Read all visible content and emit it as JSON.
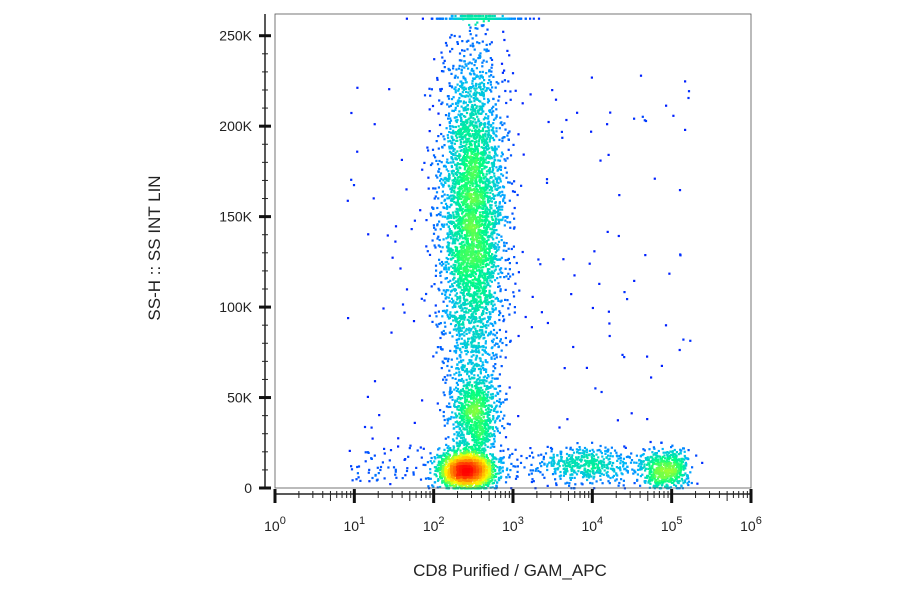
{
  "chart_data": {
    "type": "scatter",
    "subtype": "flow-cytometry-density-dot-plot",
    "title": "",
    "xlabel": "CD8 Purified / GAM_APC",
    "ylabel": "SS-H :: SS INT LIN",
    "x_scale": "log",
    "xlim": [
      1,
      1000000
    ],
    "ylim": [
      0,
      262000
    ],
    "x_ticks": [
      {
        "value": 1,
        "base": "10",
        "exp": "0"
      },
      {
        "value": 10,
        "base": "10",
        "exp": "1"
      },
      {
        "value": 100,
        "base": "10",
        "exp": "2"
      },
      {
        "value": 1000,
        "base": "10",
        "exp": "3"
      },
      {
        "value": 10000,
        "base": "10",
        "exp": "4"
      },
      {
        "value": 100000,
        "base": "10",
        "exp": "5"
      },
      {
        "value": 1000000,
        "base": "10",
        "exp": "6"
      }
    ],
    "y_ticks": [
      {
        "value": 0,
        "label": "0"
      },
      {
        "value": 50000,
        "label": "50K"
      },
      {
        "value": 100000,
        "label": "100K"
      },
      {
        "value": 150000,
        "label": "150K"
      },
      {
        "value": 200000,
        "label": "200K"
      },
      {
        "value": 250000,
        "label": "250K"
      }
    ],
    "grid": false,
    "legend": "none",
    "density_colormap": [
      "#0000ff",
      "#00b4ff",
      "#00ff80",
      "#ffff00",
      "#ff8000",
      "#ff0000"
    ],
    "populations": [
      {
        "x_center": 300,
        "y_center": 150000,
        "x_spread_decades": 0.2,
        "y_spread": 45000,
        "relative_count": 0.45,
        "peak_density": "red"
      },
      {
        "x_center": 250,
        "y_center": 10000,
        "x_spread_decades": 0.18,
        "y_spread": 5000,
        "relative_count": 0.2,
        "peak_density": "red"
      },
      {
        "x_center": 320,
        "y_center": 40000,
        "x_spread_decades": 0.15,
        "y_spread": 12000,
        "relative_count": 0.1,
        "peak_density": "cyan"
      },
      {
        "x_center": 80000,
        "y_center": 11000,
        "x_spread_decades": 0.15,
        "y_spread": 5000,
        "relative_count": 0.06,
        "peak_density": "orange"
      },
      {
        "x_center": 8000,
        "y_center": 13000,
        "x_spread_decades": 0.35,
        "y_spread": 5000,
        "relative_count": 0.05,
        "peak_density": "green"
      },
      {
        "x_center": 350,
        "y_center": 260000,
        "x_spread_decades": 0.3,
        "y_spread": 0,
        "relative_count": 0.02,
        "peak_density": "yellow",
        "note": "saturated events at top axis"
      }
    ]
  }
}
